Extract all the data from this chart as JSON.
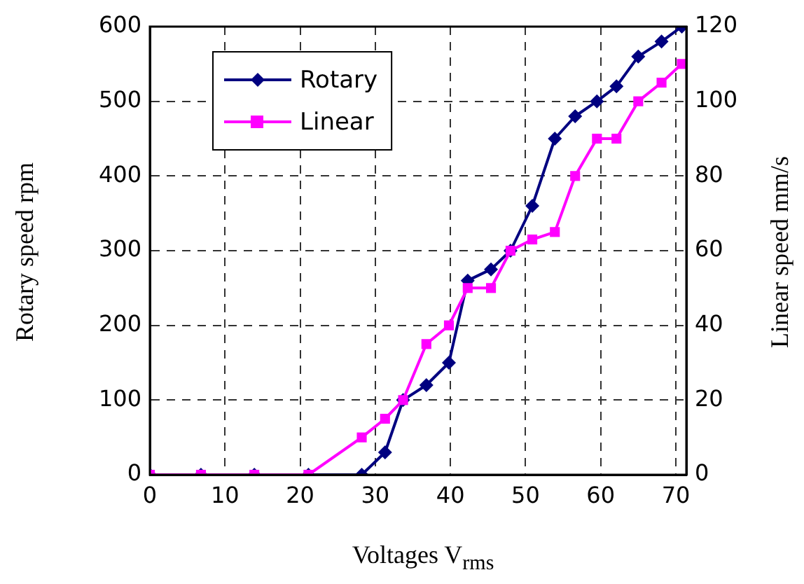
{
  "chart_data": {
    "type": "line",
    "xlabel": "Voltages V$_{rms}$",
    "ylabel": "Rotary speed rpm",
    "y2label": "Linear speed mm/s",
    "x": [
      0,
      6.8,
      13.9,
      21.1,
      28.2,
      31.3,
      33.7,
      36.8,
      39.8,
      42.3,
      45.4,
      48,
      50.9,
      53.9,
      56.6,
      59.5,
      62.1,
      65,
      68.1,
      70.8
    ],
    "series": [
      {
        "name": "Rotary",
        "color": "#000080",
        "marker": "diamond",
        "values": [
          0,
          0,
          0,
          0,
          0,
          30,
          100,
          120,
          150,
          260,
          275,
          300,
          360,
          450,
          480,
          500,
          520,
          560,
          580,
          600
        ]
      },
      {
        "name": "Linear",
        "color": "#ff00ff",
        "marker": "square",
        "axis": "y2",
        "values": [
          0,
          0,
          0,
          0,
          10,
          15,
          20,
          35,
          40,
          50,
          50,
          60,
          63,
          65,
          80,
          90,
          90,
          100,
          105,
          110
        ]
      }
    ],
    "xlim": [
      0,
      71.4
    ],
    "xticks": [
      0,
      10,
      20,
      30,
      40,
      50,
      60,
      70
    ],
    "ylim": [
      0,
      600
    ],
    "yticks": [
      0,
      100,
      200,
      300,
      400,
      500,
      600
    ],
    "y2lim": [
      0,
      120
    ],
    "y2ticks": [
      0,
      20,
      40,
      60,
      80,
      100,
      120
    ],
    "grid": true,
    "legend": "top left",
    "line_style": "solid"
  }
}
